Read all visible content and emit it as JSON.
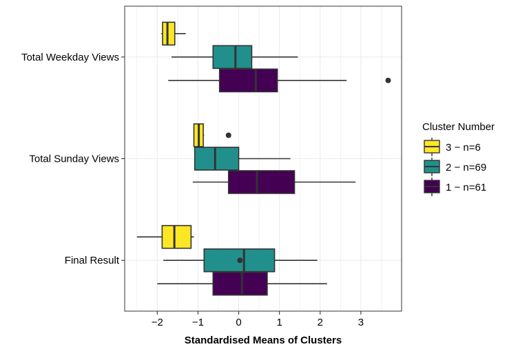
{
  "chart_data": {
    "type": "boxplot",
    "orientation": "horizontal",
    "xlabel": "Standardised Means of Clusters",
    "ylabel": "",
    "xlim": [
      -2.8,
      4.0
    ],
    "xticks": [
      -2,
      -1,
      0,
      1,
      2,
      3
    ],
    "xtick_labels": [
      "−2",
      "−1",
      "0",
      "1",
      "2",
      "3"
    ],
    "grid": true,
    "legend_position": "right",
    "categories": [
      "Total Weekday Views",
      "Total Sunday Views",
      "Final Result"
    ],
    "legend": {
      "title": "Cluster Number",
      "items": [
        {
          "label": "3 − n=6",
          "color": "#FDE725"
        },
        {
          "label": "2 − n=69",
          "color": "#21908C"
        },
        {
          "label": "1 − n=61",
          "color": "#440154"
        }
      ]
    },
    "series": [
      {
        "name": "3 − n=6",
        "color": "#FDE725",
        "boxes": [
          {
            "category": "Total Weekday Views",
            "whisker_low": -1.9,
            "q1": -1.87,
            "median": -1.75,
            "q3": -1.57,
            "whisker_high": -1.3,
            "outliers": []
          },
          {
            "category": "Total Sunday Views",
            "whisker_low": -1.1,
            "q1": -1.1,
            "median": -0.98,
            "q3": -0.87,
            "whisker_high": -0.85,
            "outliers": [
              -0.25
            ]
          },
          {
            "category": "Final Result",
            "whisker_low": -2.5,
            "q1": -1.88,
            "median": -1.58,
            "q3": -1.17,
            "whisker_high": -1.1,
            "outliers": []
          }
        ]
      },
      {
        "name": "2 − n=69",
        "color": "#21908C",
        "boxes": [
          {
            "category": "Total Weekday Views",
            "whisker_low": -1.65,
            "q1": -0.63,
            "median": -0.08,
            "q3": 0.32,
            "whisker_high": 1.45,
            "outliers": []
          },
          {
            "category": "Total Sunday Views",
            "whisker_low": -1.08,
            "q1": -1.08,
            "median": -0.58,
            "q3": 0.0,
            "whisker_high": 1.27,
            "outliers": []
          },
          {
            "category": "Final Result",
            "whisker_low": -1.85,
            "q1": -0.85,
            "median": 0.13,
            "q3": 0.88,
            "whisker_high": 1.93,
            "outliers": [
              0.03
            ]
          }
        ]
      },
      {
        "name": "1 − n=61",
        "color": "#440154",
        "boxes": [
          {
            "category": "Total Weekday Views",
            "whisker_low": -1.73,
            "q1": -0.47,
            "median": 0.42,
            "q3": 0.95,
            "whisker_high": 2.65,
            "outliers": [
              3.67
            ]
          },
          {
            "category": "Total Sunday Views",
            "whisker_low": -1.13,
            "q1": -0.25,
            "median": 0.45,
            "q3": 1.37,
            "whisker_high": 2.87,
            "outliers": []
          },
          {
            "category": "Final Result",
            "whisker_low": -2.0,
            "q1": -0.63,
            "median": 0.08,
            "q3": 0.7,
            "whisker_high": 2.17,
            "outliers": []
          }
        ]
      }
    ]
  }
}
